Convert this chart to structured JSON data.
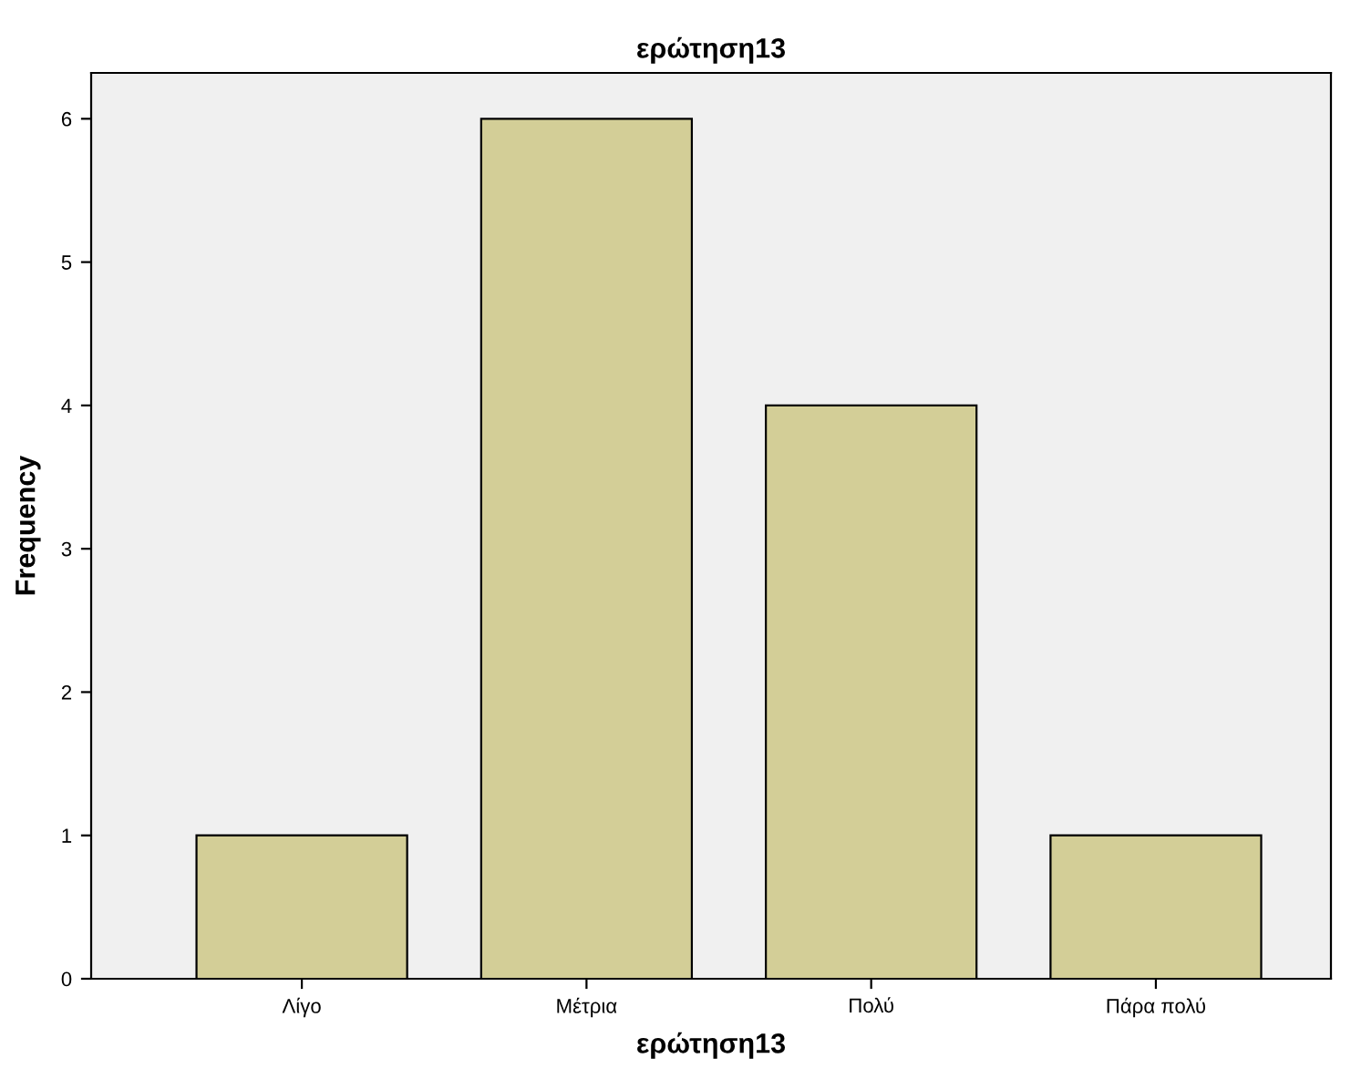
{
  "chart_data": {
    "type": "bar",
    "title": "ερώτηση13",
    "xlabel": "ερώτηση13",
    "ylabel": "Frequency",
    "categories": [
      "Λίγο",
      "Μέτρια",
      "Πολύ",
      "Πάρα πολύ"
    ],
    "values": [
      1,
      6,
      4,
      1
    ],
    "color": "#d3ce97",
    "ylim": [
      0,
      6.32
    ],
    "yticks": [
      0,
      1,
      2,
      3,
      4,
      5,
      6
    ],
    "grid": false
  }
}
